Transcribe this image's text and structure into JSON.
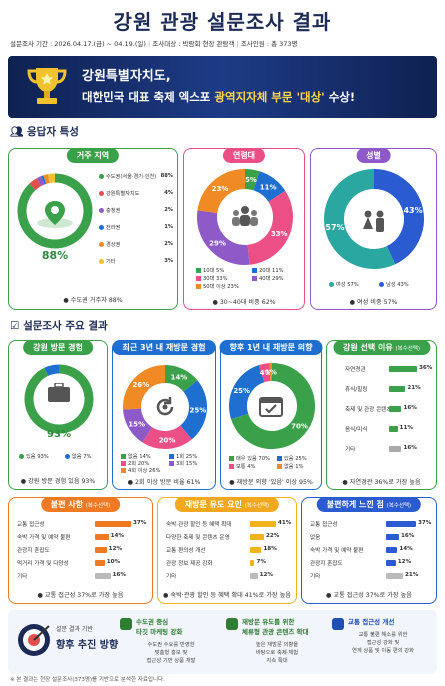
{
  "title": "강원 관광 설문조사 결과",
  "meta": {
    "period": "설문조사 기간 : 2026.04.17.(금) ~ 04.19.(일)",
    "target": "조사대상 : 박람회 현장 관람객",
    "count": "조사인원 : 총 373명"
  },
  "banner": {
    "line1": "강원특별자치도,",
    "line2_a": "대한민국 대표 축제 엑스포 ",
    "line2_hl": "광역지자체 부문 '대상'",
    "line2_b": " 수상!"
  },
  "section1": "응답자 특성",
  "region": {
    "title": "거주 지역",
    "center": "88%",
    "items": [
      {
        "label": "수도권(서울·경기·인천)",
        "value": "88%",
        "color": "#3aa14a"
      },
      {
        "label": "강원특별자치도",
        "value": "4%",
        "color": "#e24f4f"
      },
      {
        "label": "충청권",
        "value": "2%",
        "color": "#8e5ac8"
      },
      {
        "label": "전라권",
        "value": "1%",
        "color": "#1f6fd1"
      },
      {
        "label": "경상권",
        "value": "2%",
        "color": "#f08a24"
      },
      {
        "label": "기타",
        "value": "3%",
        "color": "#f2c12e"
      }
    ],
    "note": "수도권 거주자 88%"
  },
  "age": {
    "title": "연령대",
    "slices": [
      {
        "label": "10대",
        "value": "5%",
        "color": "#3aa14a"
      },
      {
        "label": "20대",
        "value": "11%",
        "color": "#1f6fd1"
      },
      {
        "label": "30대",
        "value": "33%",
        "color": "#ec4f86"
      },
      {
        "label": "40대",
        "value": "29%",
        "color": "#8e5ac8"
      },
      {
        "label": "50대 이상",
        "value": "23%",
        "color": "#f08a24"
      }
    ],
    "note": "30~40대 비중 62%"
  },
  "gender": {
    "title": "성별",
    "female": "57%",
    "male": "43%",
    "female_label": "여성",
    "male_label": "남성",
    "note": "여성 비중 57%"
  },
  "section2": "설문조사 주요 결과",
  "visit": {
    "title": "강원 방문 경험",
    "center": "93%",
    "yes": "있음 93%",
    "no": "없음 7%",
    "note": "강원 방문 경험 있음 93%"
  },
  "revisit3": {
    "title": "최근 3년 내 재방문 경험",
    "slices": [
      {
        "label": "없음",
        "value": "14%",
        "color": "#3aa14a"
      },
      {
        "label": "1회",
        "value": "25%",
        "color": "#1f6fd1"
      },
      {
        "label": "2회",
        "value": "20%",
        "color": "#ec4f86"
      },
      {
        "label": "3회",
        "value": "15%",
        "color": "#8e5ac8"
      },
      {
        "label": "4회 이상",
        "value": "26%",
        "color": "#f08a24"
      }
    ],
    "note": "2회 이상 방문 비율 61%"
  },
  "revisit1": {
    "title": "향후 1년 내 재방문 의향",
    "slices": [
      {
        "label": "매우 있음",
        "value": "70%",
        "color": "#3aa14a"
      },
      {
        "label": "있음",
        "value": "25%",
        "color": "#1f6fd1"
      },
      {
        "label": "보통",
        "value": "4%",
        "color": "#ec4f86"
      },
      {
        "label": "없음",
        "value": "1%",
        "color": "#f08a24"
      }
    ],
    "note": "재방문 의향 '있음' 이상 95%"
  },
  "reason": {
    "title": "강원 선택 이유",
    "sub": "(복수선택)",
    "items": [
      {
        "label": "자연경관",
        "value": "36%",
        "pct": 36,
        "color": "#3aa14a"
      },
      {
        "label": "휴식/힐링",
        "value": "21%",
        "pct": 21,
        "color": "#3aa14a"
      },
      {
        "label": "축제 및 관광 콘텐츠",
        "value": "16%",
        "pct": 16,
        "color": "#3aa14a"
      },
      {
        "label": "음식/미식",
        "value": "11%",
        "pct": 11,
        "color": "#3aa14a"
      },
      {
        "label": "기타",
        "value": "16%",
        "pct": 16,
        "color": "#aaa"
      }
    ],
    "note": "자연경관 36%로 가장 높음"
  },
  "complaint": {
    "title": "불편 사항",
    "sub": "(복수선택)",
    "items": [
      {
        "label": "교통 접근성",
        "value": "37%",
        "pct": 37,
        "color": "#f07a24"
      },
      {
        "label": "숙박 가격 및 예약 불편",
        "value": "14%",
        "pct": 14,
        "color": "#f07a24"
      },
      {
        "label": "관광지 혼잡도",
        "value": "12%",
        "pct": 12,
        "color": "#f07a24"
      },
      {
        "label": "먹거리 가격 및 다양성",
        "value": "10%",
        "pct": 10,
        "color": "#f07a24"
      },
      {
        "label": "기타",
        "value": "16%",
        "pct": 16,
        "color": "#bbb"
      }
    ],
    "note": "교통 접근성 37%로 가장 높음"
  },
  "incentive": {
    "title": "재방문 유도 요인",
    "sub": "(복수선택)",
    "items": [
      {
        "label": "숙박·관광 할인 등 혜택 확대",
        "value": "41%",
        "pct": 41,
        "color": "#f2b21e"
      },
      {
        "label": "다양한 축제 및 콘텐츠 운영",
        "value": "22%",
        "pct": 22,
        "color": "#f2b21e"
      },
      {
        "label": "교통 편의성 개선",
        "value": "18%",
        "pct": 18,
        "color": "#f2b21e"
      },
      {
        "label": "관광 정보 제공 강화",
        "value": "7%",
        "pct": 7,
        "color": "#f2b21e"
      },
      {
        "label": "기타",
        "value": "12%",
        "pct": 12,
        "color": "#bbb"
      }
    ],
    "note": "숙박·관광 할인 등 혜택 확대 41%로 가장 높음"
  },
  "improve": {
    "title": "불편하게 느낀 점",
    "sub": "(복수선택)",
    "items": [
      {
        "label": "교통 접근성",
        "value": "37%",
        "pct": 37,
        "color": "#2a5bd0"
      },
      {
        "label": "없음",
        "value": "16%",
        "pct": 16,
        "color": "#2a5bd0"
      },
      {
        "label": "숙박 가격 및 예약 불편",
        "value": "14%",
        "pct": 14,
        "color": "#2a5bd0"
      },
      {
        "label": "관광지 혼잡도",
        "value": "12%",
        "pct": 12,
        "color": "#2a5bd0"
      },
      {
        "label": "기타",
        "value": "21%",
        "pct": 21,
        "color": "#bbb"
      }
    ],
    "note": "교통 접근성 37%로 가장 높음"
  },
  "future": {
    "pre": "설문 결과 기반",
    "title": "향후 추진 방향",
    "items": [
      {
        "title": "수도권 중심\n타깃 마케팅 강화",
        "desc": "수도권 수요를 반영한\n맞춤형 홍보 및\n접근성 기반 상품 개발",
        "color": "#2e7d32"
      },
      {
        "title": "재방문 유도를 위한\n체류형 관광 콘텐츠 확대",
        "desc": "높은 재방문 의향을\n바탕으로 축제·체험\n지속 확대",
        "color": "#2e7d32"
      },
      {
        "title": "교통 접근성 개선",
        "desc": "교통 불편 해소를 위한\n접근성 강화 및\n연계 상품 및 이동 편의 강화",
        "color": "#1f4fb0"
      }
    ]
  },
  "footnote": "※ 본 결과는 현장 설문조사(373명)를 기반으로 분석한 자료입니다."
}
